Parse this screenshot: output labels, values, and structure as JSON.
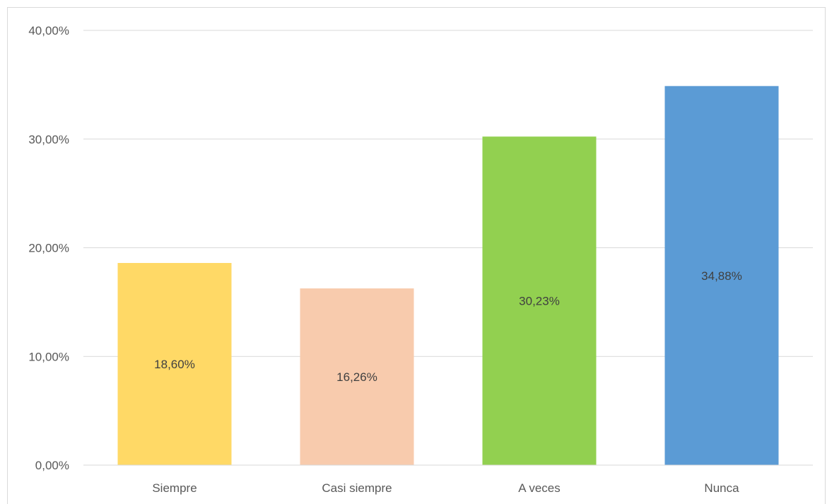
{
  "chart_data": {
    "type": "bar",
    "title": "",
    "xlabel": "",
    "ylabel": "",
    "ylim": [
      0,
      40
    ],
    "yticks": [
      0,
      10,
      20,
      30,
      40
    ],
    "ytick_labels": [
      "0,00%",
      "10,00%",
      "20,00%",
      "30,00%",
      "40,00%"
    ],
    "categories": [
      "Siempre",
      "Casi siempre",
      "A veces",
      "Nunca"
    ],
    "values": [
      18.6,
      16.26,
      30.23,
      34.88
    ],
    "data_labels": [
      "18,60%",
      "16,26%",
      "30,23%",
      "34,88%"
    ],
    "colors": [
      "#FFD966",
      "#F8CBAD",
      "#92D050",
      "#5B9BD5"
    ],
    "grid": true,
    "legend": "none"
  }
}
